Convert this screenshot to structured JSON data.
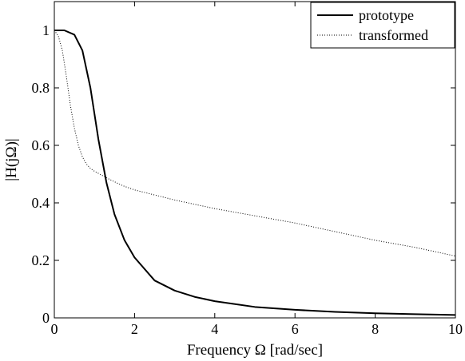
{
  "chart_data": {
    "type": "line",
    "xlabel": "Frequency Ω [rad/sec]",
    "ylabel": "|H(jΩ)|",
    "xlim": [
      0,
      10
    ],
    "ylim": [
      0,
      1.1
    ],
    "xticks": [
      0,
      2,
      4,
      6,
      8,
      10
    ],
    "xtick_labels": [
      "0",
      "2",
      "4",
      "6",
      "8",
      "10"
    ],
    "yticks": [
      0,
      0.2,
      0.4,
      0.6,
      0.8,
      1
    ],
    "ytick_labels": [
      "0",
      "0.2",
      "0.4",
      "0.6",
      "0.8",
      "1"
    ],
    "grid": false,
    "legend_position": "top-right",
    "series": [
      {
        "name": "prototype",
        "style": "solid",
        "color": "#000000",
        "x": [
          0,
          0.25,
          0.5,
          0.7,
          0.9,
          1.0,
          1.1,
          1.3,
          1.5,
          1.75,
          2.0,
          2.5,
          3.0,
          3.5,
          4.0,
          5.0,
          6.0,
          7.0,
          8.0,
          9.0,
          10.0
        ],
        "y": [
          1.0,
          1.0,
          0.985,
          0.93,
          0.8,
          0.71,
          0.62,
          0.47,
          0.36,
          0.27,
          0.21,
          0.13,
          0.095,
          0.073,
          0.058,
          0.038,
          0.028,
          0.021,
          0.016,
          0.013,
          0.01
        ]
      },
      {
        "name": "transformed",
        "style": "dotted",
        "color": "#000000",
        "x": [
          0,
          0.1,
          0.2,
          0.3,
          0.4,
          0.5,
          0.6,
          0.7,
          0.8,
          0.9,
          1.0,
          1.2,
          1.4,
          1.7,
          2.0,
          3.0,
          4.0,
          5.0,
          6.0,
          7.0,
          8.0,
          9.0,
          10.0
        ],
        "y": [
          1.0,
          0.98,
          0.93,
          0.84,
          0.74,
          0.66,
          0.6,
          0.56,
          0.535,
          0.52,
          0.51,
          0.495,
          0.48,
          0.46,
          0.445,
          0.41,
          0.38,
          0.355,
          0.33,
          0.3,
          0.27,
          0.245,
          0.215
        ]
      }
    ]
  }
}
